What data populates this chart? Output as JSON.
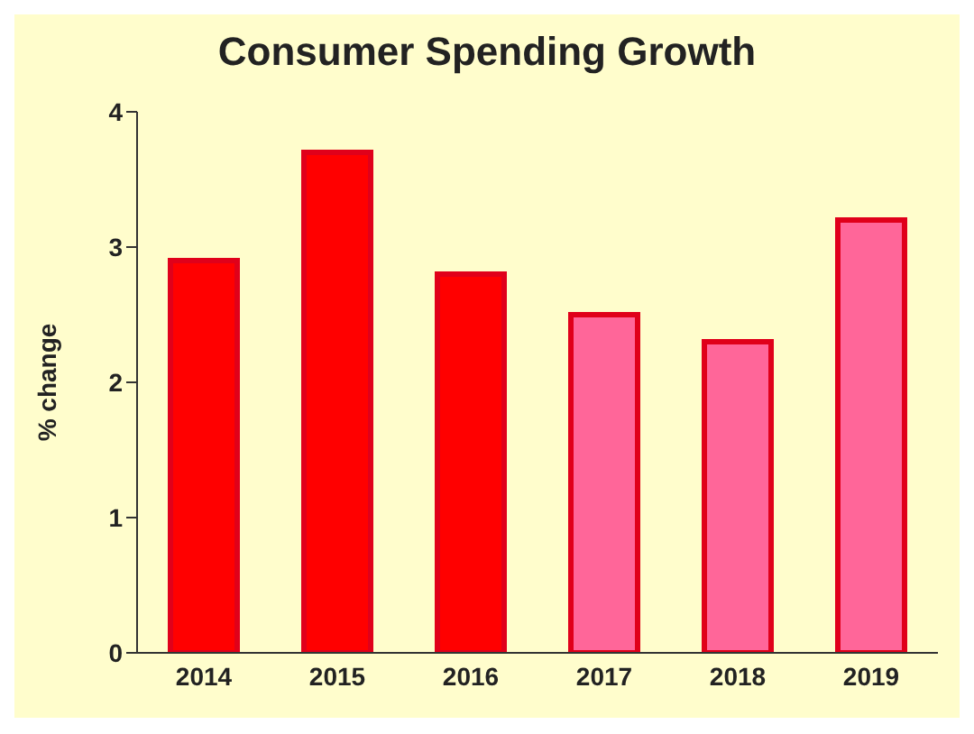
{
  "chart_data": {
    "type": "bar",
    "title": "Consumer Spending Growth",
    "ylabel": "% change",
    "categories": [
      "2014",
      "2015",
      "2016",
      "2017",
      "2018",
      "2019"
    ],
    "values": [
      2.9,
      3.7,
      2.8,
      2.5,
      2.3,
      3.2
    ],
    "colors": [
      "#ff0000",
      "#ff0000",
      "#ff0000",
      "#ff6699",
      "#ff6699",
      "#ff6699"
    ],
    "ylim": [
      0,
      4
    ],
    "yticks": [
      0,
      1,
      2,
      3,
      4
    ],
    "grid": false
  }
}
